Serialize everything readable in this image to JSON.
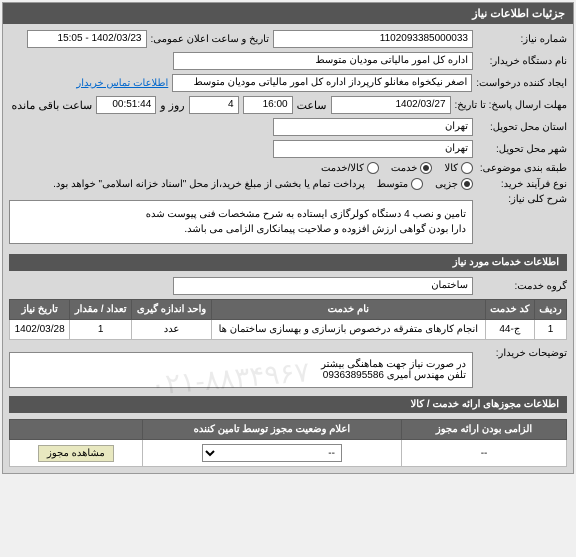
{
  "header": {
    "title": "جزئیات اطلاعات نیاز"
  },
  "details": {
    "need_no_label": "شماره نیاز:",
    "need_no": "1102093385000033",
    "datetime_label": "تاریخ و ساعت اعلان عمومی:",
    "datetime": "1402/03/23 - 15:05",
    "buyer_label": "نام دستگاه خریدار:",
    "buyer": "اداره کل امور مالیاتی مودیان متوسط",
    "creator_label": "ایجاد کننده درخواست:",
    "creator": "اصغر نیکخواه مغانلو کارپرداز اداره کل امور مالیاتی مودیان متوسط",
    "contact_link": "اطلاعات تماس خریدار",
    "deadline_label": "مهلت ارسال پاسخ: تا تاریخ:",
    "deadline_date": "1402/03/27",
    "time_label": "ساعت",
    "deadline_time": "16:00",
    "days": "4",
    "days_label": "روز و",
    "remaining": "00:51:44",
    "remaining_label": "ساعت باقی مانده",
    "delivery_province_label": "استان محل تحویل:",
    "delivery_province": "تهران",
    "delivery_city_label": "شهر محل تحویل:",
    "delivery_city": "تهران",
    "subject_type_label": "طبقه بندی موضوعی:",
    "subject_types": [
      {
        "label": "کالا",
        "checked": false
      },
      {
        "label": "خدمت",
        "checked": true
      },
      {
        "label": "کالا/خدمت",
        "checked": false
      }
    ],
    "process_type_label": "نوع فرآیند خرید:",
    "process_types": [
      {
        "label": "جزیی",
        "checked": true
      },
      {
        "label": "متوسط",
        "checked": false
      }
    ],
    "payment_note": "پرداخت تمام یا بخشی از مبلغ خرید،از محل \"اسناد خزانه اسلامی\" خواهد بود."
  },
  "summary": {
    "label": "شرح کلی نیاز:",
    "text": "تامین و نصب 4 دستگاه کولرگازی ایستاده به شرح مشخصات فنی پیوست شده\nدارا بودن گواهی ارزش افزوده و  صلاحیت پیمانکاری الزامی می باشد."
  },
  "services": {
    "header": "اطلاعات خدمات مورد نیاز",
    "group_label": "گروه خدمت:",
    "group": "ساختمان",
    "columns": [
      "ردیف",
      "کد خدمت",
      "نام خدمت",
      "واحد اندازه گیری",
      "تعداد / مقدار",
      "تاریخ نیاز"
    ],
    "rows": [
      [
        "1",
        "ج-44",
        "انجام کارهای متفرقه درخصوص بازسازی و بهسازی ساختمان ها",
        "عدد",
        "1",
        "1402/03/28"
      ]
    ]
  },
  "buyer_notes": {
    "label": "توضیحات خریدار:",
    "text": "در صورت نیاز جهت هماهنگی بیشتر\nتلفن مهندس امیری 09363895586"
  },
  "permits": {
    "header": "اطلاعات مجوزهای ارائه خدمت / کالا",
    "columns": [
      "الزامی بودن ارائه مجوز",
      "اعلام وضعیت مجوز توسط تامین کننده",
      ""
    ],
    "row": {
      "mandatory": "--",
      "status_options": [
        "--"
      ],
      "view_btn": "مشاهده مجوز"
    }
  },
  "watermark": "۰۲۱-۸۸۳۴۹۶۷"
}
